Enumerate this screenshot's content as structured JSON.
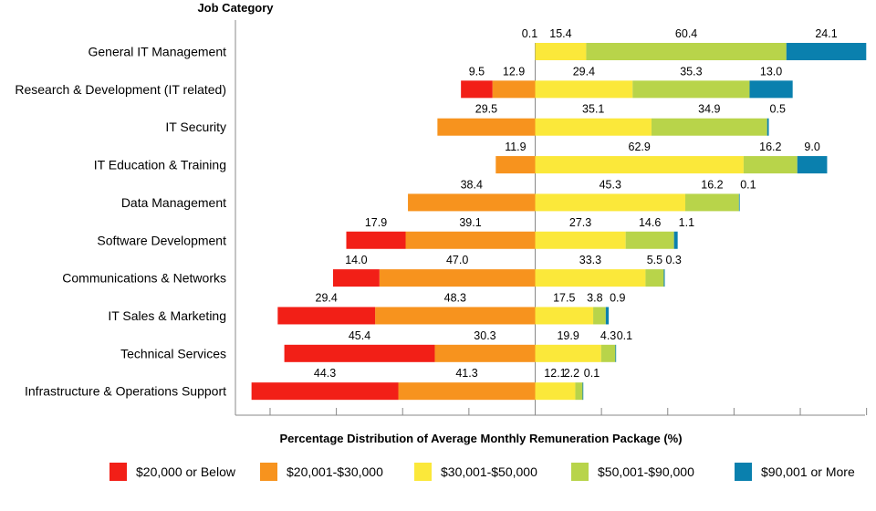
{
  "chart_data": {
    "type": "bar",
    "orientation": "horizontal",
    "stacking": "diverging",
    "title": "Job Category",
    "xlabel": "Percentage Distribution of Average Monthly Remuneration Package (%)",
    "categories": [
      "General IT Management",
      "Research & Development (IT related)",
      "IT Security",
      "IT Education & Training",
      "Data Management",
      "Software Development",
      "Communications & Networks",
      "IT Sales & Marketing",
      "Technical Services",
      "Infrastructure & Operations Support"
    ],
    "series": [
      {
        "name": "$20,000 or Below",
        "color": "#f21f17",
        "side": "left",
        "values": [
          null,
          9.5,
          null,
          null,
          null,
          17.9,
          14.0,
          29.4,
          45.4,
          44.3
        ]
      },
      {
        "name": "$20,001-$30,000",
        "color": "#f7931e",
        "side": "left",
        "values": [
          null,
          12.9,
          29.5,
          11.9,
          38.4,
          39.1,
          47.0,
          48.3,
          30.3,
          41.3
        ]
      },
      {
        "name": "$30,001-$50,000",
        "color": "#fbe83a",
        "side": "right",
        "values": [
          15.4,
          29.4,
          35.1,
          62.9,
          45.3,
          27.3,
          33.3,
          17.5,
          19.9,
          12.1
        ]
      },
      {
        "name": "$50,001-$90,000",
        "color": "#b8d44a",
        "side": "right",
        "values": [
          60.4,
          35.3,
          34.9,
          16.2,
          16.2,
          14.6,
          5.5,
          3.8,
          4.3,
          2.2
        ]
      },
      {
        "name": "$90,001 or More",
        "color": "#0a80ae",
        "side": "right",
        "values": [
          24.1,
          13.0,
          0.5,
          9.0,
          0.1,
          1.1,
          0.3,
          0.9,
          0.1,
          0.1
        ]
      }
    ],
    "extra_labels": [
      {
        "category": "General IT Management",
        "label": "0.1"
      }
    ],
    "xlim": [
      -90,
      100
    ],
    "tick_step": 20,
    "legend_position": "bottom"
  }
}
